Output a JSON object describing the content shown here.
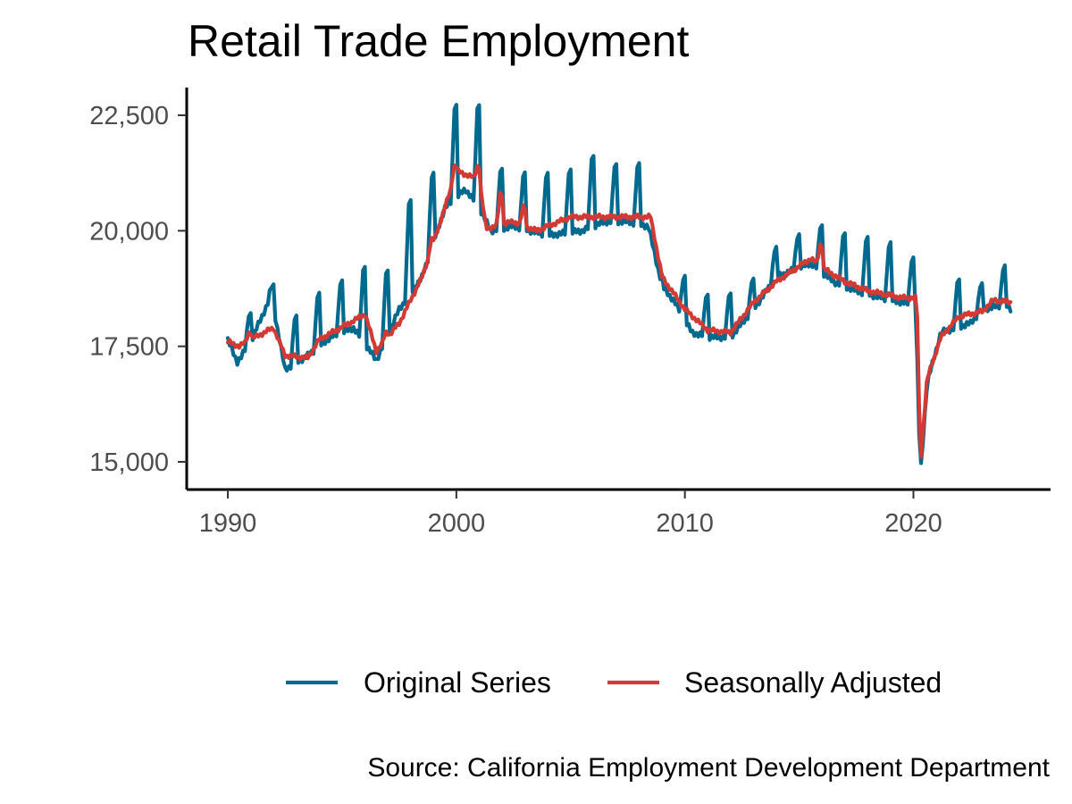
{
  "chart_data": {
    "type": "line",
    "title": "Retail Trade Employment",
    "xlabel": "",
    "ylabel": "",
    "caption": "Source: California Employment Development Department",
    "xlim": [
      1988.2,
      2026.0
    ],
    "ylim": [
      14400,
      23100
    ],
    "x_ticks": [
      1990,
      2000,
      2010,
      2020
    ],
    "x_tick_labels": [
      "1990",
      "2000",
      "2010",
      "2020"
    ],
    "y_ticks": [
      15000,
      17500,
      20000,
      22500
    ],
    "y_tick_labels": [
      "15,000",
      "17,500",
      "20,000",
      "22,500"
    ],
    "grid": false,
    "legend": {
      "position": "bottom"
    },
    "colors": {
      "original": "#006a8e",
      "adjusted": "#d13a35"
    },
    "series": [
      {
        "name": "Original Series",
        "color": "#006a8e",
        "anchors": [
          [
            1990.0,
            17650
          ],
          [
            1990.4,
            17150
          ],
          [
            1991.0,
            17600
          ],
          [
            1991.9,
            18600
          ],
          [
            1992.5,
            17000
          ],
          [
            1993.5,
            17300
          ],
          [
            1994.5,
            17700
          ],
          [
            1995.5,
            17900
          ],
          [
            1996.5,
            17200
          ],
          [
            1997.5,
            18300
          ],
          [
            1998.5,
            19000
          ],
          [
            1999.5,
            20500
          ],
          [
            2000.4,
            20900
          ],
          [
            2001.0,
            20500
          ],
          [
            2001.5,
            20000
          ],
          [
            2002.5,
            20100
          ],
          [
            2004.0,
            19900
          ],
          [
            2005.5,
            20000
          ],
          [
            2006.5,
            20200
          ],
          [
            2007.5,
            20200
          ],
          [
            2008.4,
            20100
          ],
          [
            2009.0,
            18800
          ],
          [
            2009.5,
            18500
          ],
          [
            2010.3,
            17800
          ],
          [
            2011.0,
            17700
          ],
          [
            2012.0,
            17700
          ],
          [
            2013.0,
            18300
          ],
          [
            2014.0,
            19000
          ],
          [
            2015.5,
            19300
          ],
          [
            2016.5,
            18900
          ],
          [
            2017.5,
            18700
          ],
          [
            2019.0,
            18500
          ],
          [
            2020.1,
            18400
          ],
          [
            2020.3,
            14700
          ],
          [
            2020.6,
            16700
          ],
          [
            2021.2,
            17800
          ],
          [
            2022.5,
            18000
          ],
          [
            2023.0,
            18300
          ],
          [
            2024.0,
            18400
          ],
          [
            2024.25,
            18300
          ]
        ],
        "seasonal_peaks": [
          [
            1990.95,
            18200
          ],
          [
            1991.95,
            18800
          ],
          [
            1992.95,
            18100
          ],
          [
            1993.95,
            18600
          ],
          [
            1994.95,
            18900
          ],
          [
            1995.95,
            19200
          ],
          [
            1996.95,
            19100
          ],
          [
            1997.95,
            20600
          ],
          [
            1998.95,
            21200
          ],
          [
            1999.95,
            22700
          ],
          [
            2000.95,
            22700
          ],
          [
            2001.95,
            21300
          ],
          [
            2002.95,
            21200
          ],
          [
            2003.95,
            21200
          ],
          [
            2004.95,
            21300
          ],
          [
            2005.95,
            21600
          ],
          [
            2006.95,
            21400
          ],
          [
            2007.95,
            21400
          ],
          [
            2008.95,
            19000
          ],
          [
            2009.95,
            19000
          ],
          [
            2010.95,
            18600
          ],
          [
            2011.95,
            18600
          ],
          [
            2012.95,
            18900
          ],
          [
            2013.95,
            19600
          ],
          [
            2014.95,
            19900
          ],
          [
            2015.95,
            20100
          ],
          [
            2016.95,
            19900
          ],
          [
            2017.95,
            19800
          ],
          [
            2018.95,
            19700
          ],
          [
            2019.95,
            19400
          ],
          [
            2021.95,
            18900
          ],
          [
            2022.95,
            18800
          ],
          [
            2023.95,
            19200
          ]
        ]
      },
      {
        "name": "Seasonally Adjusted",
        "color": "#d13a35",
        "anchors": [
          [
            1990.0,
            17600
          ],
          [
            1990.5,
            17500
          ],
          [
            1991.0,
            17650
          ],
          [
            1992.0,
            17900
          ],
          [
            1992.5,
            17300
          ],
          [
            1993.5,
            17250
          ],
          [
            1994.0,
            17650
          ],
          [
            1995.5,
            18050
          ],
          [
            1996.0,
            18200
          ],
          [
            1996.5,
            17400
          ],
          [
            1997.5,
            18000
          ],
          [
            1998.5,
            19000
          ],
          [
            1999.5,
            20500
          ],
          [
            2000.0,
            21300
          ],
          [
            2001.0,
            21100
          ],
          [
            2001.3,
            20050
          ],
          [
            2002.5,
            20200
          ],
          [
            2003.5,
            20000
          ],
          [
            2005.0,
            20300
          ],
          [
            2006.5,
            20300
          ],
          [
            2008.5,
            20300
          ],
          [
            2009.0,
            19000
          ],
          [
            2010.0,
            18300
          ],
          [
            2011.0,
            17850
          ],
          [
            2012.0,
            17800
          ],
          [
            2013.0,
            18450
          ],
          [
            2014.0,
            18900
          ],
          [
            2015.5,
            19400
          ],
          [
            2016.0,
            19200
          ],
          [
            2017.0,
            18900
          ],
          [
            2018.0,
            18700
          ],
          [
            2019.5,
            18550
          ],
          [
            2020.15,
            18550
          ],
          [
            2020.3,
            14950
          ],
          [
            2020.6,
            16800
          ],
          [
            2021.2,
            17700
          ],
          [
            2022.0,
            18150
          ],
          [
            2023.0,
            18250
          ],
          [
            2023.5,
            18500
          ],
          [
            2024.25,
            18450
          ]
        ],
        "seasonal_peaks": [
          [
            1990.95,
            17800
          ],
          [
            1996.95,
            17800
          ],
          [
            1998.95,
            19800
          ],
          [
            1999.95,
            21400
          ],
          [
            2000.95,
            21400
          ],
          [
            2001.95,
            20800
          ],
          [
            2002.95,
            20500
          ],
          [
            2015.95,
            19700
          ]
        ]
      }
    ]
  }
}
